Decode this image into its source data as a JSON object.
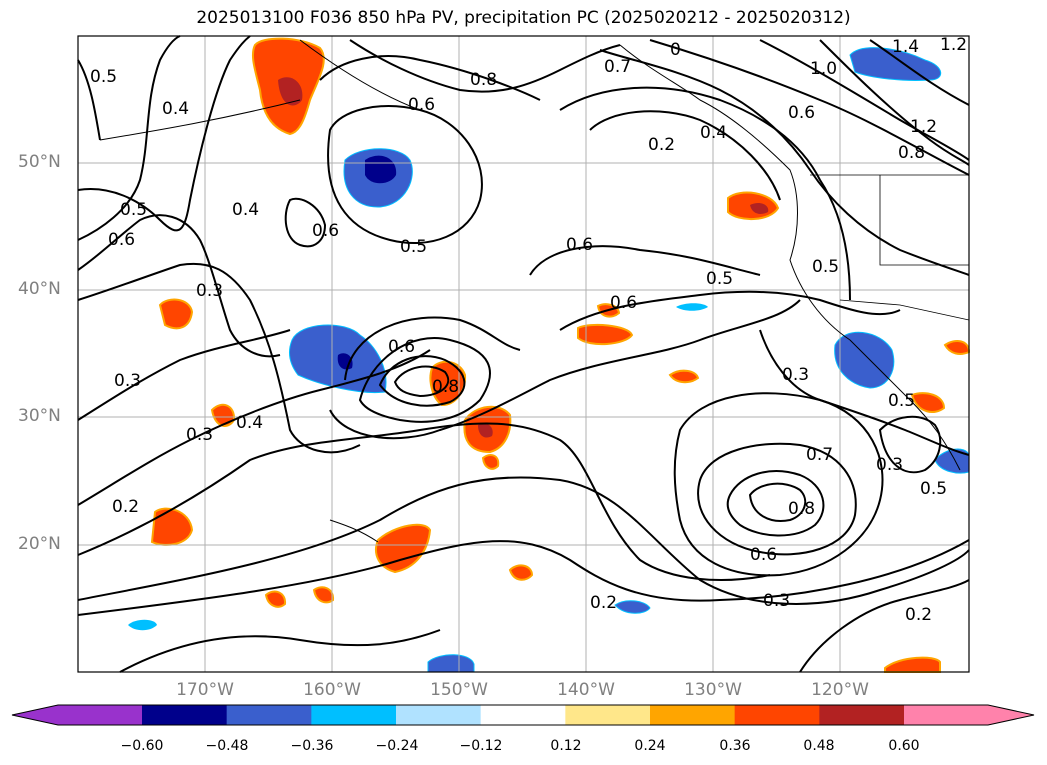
{
  "title": "2025013100 F036 850 hPa PV, precipitation PC (2025020212 - 2025020312)",
  "lat_labels": [
    "50°N",
    "40°N",
    "30°N",
    "20°N"
  ],
  "lon_labels": [
    "170°W",
    "160°W",
    "150°W",
    "140°W",
    "130°W",
    "120°W"
  ],
  "contour_labels": [
    "0.5",
    "0.4",
    "0.6",
    "0.8",
    "0",
    "0.7",
    "0.6",
    "1.4",
    "1.2",
    "1.0",
    "1.2",
    "0.8",
    "0.2",
    "0.4",
    "0.5",
    "0.6",
    "0.4",
    "0.6",
    "0.5",
    "0.6",
    "0.5",
    "0.3",
    "0.5",
    "0.6",
    "0.3",
    "0.6",
    "0.8",
    "0.3",
    "0.3",
    "0.4",
    "0.5",
    "0.7",
    "0.8",
    "0.3",
    "0.5",
    "0.2",
    "0.6",
    "0.2",
    "0.3",
    "0.2"
  ],
  "colorbar": {
    "ticks": [
      "−0.60",
      "−0.48",
      "−0.36",
      "−0.24",
      "−0.12",
      "0.12",
      "0.24",
      "0.36",
      "0.48",
      "0.60"
    ],
    "colors": [
      "#9932cc",
      "#00008b",
      "#3a5fcd",
      "#00bfff",
      "#b0e2ff",
      "#ffffff",
      "#ffe78a",
      "#ffa500",
      "#ff4500",
      "#b22222",
      "#ff82ab"
    ]
  },
  "colors": {
    "coast": "#000000",
    "grid": "#b0b0b0",
    "axis_label": "#808080"
  }
}
